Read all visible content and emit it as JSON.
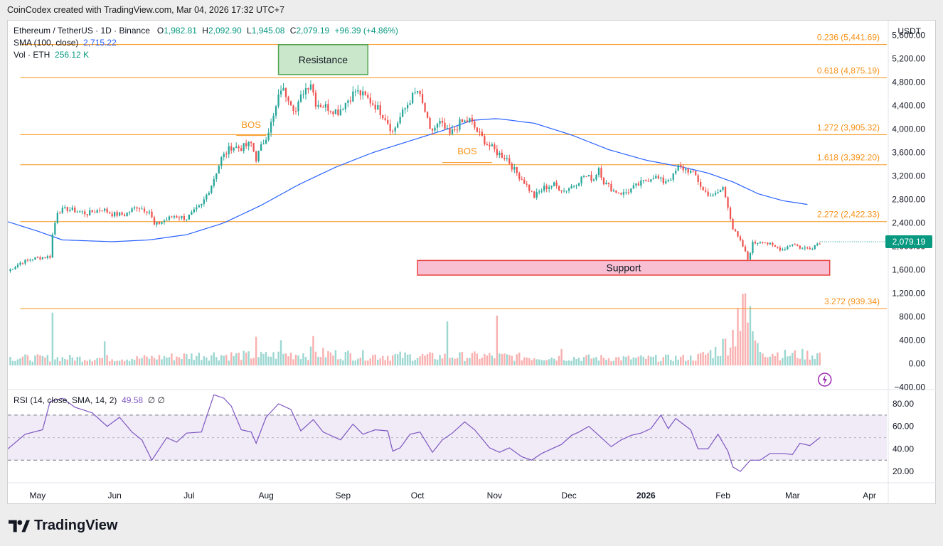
{
  "header": {
    "caption": "CoinCodex created with TradingView.com, Mar 04, 2026 17:32 UTC+7"
  },
  "legend": {
    "symbol": "Ethereum / TetherUS · 1D · Binance",
    "o_label": "O",
    "o_value": "1,982.81",
    "h_label": "H",
    "h_value": "2,092.90",
    "l_label": "L",
    "l_value": "1,945.08",
    "c_label": "C",
    "c_value": "2,079.19",
    "change": "+96.39 (+4.86%)",
    "sma_label": "SMA (100, close)",
    "sma_value": "2,715.22",
    "vol_label": "Vol · ETH",
    "vol_value": "256.12 K",
    "rsi_label": "RSI (14, close, SMA, 14, 2)",
    "rsi_value": "49.58",
    "rsi_extra": "∅  ∅"
  },
  "axis": {
    "currency": "USDT"
  },
  "footer": {
    "brand": "TradingView"
  },
  "colors": {
    "up": "#26a69a",
    "down": "#ef5350",
    "sma": "#2962ff",
    "fib": "#f7931a",
    "rsi": "#7e57c2",
    "rsi_band": "#ede7f6",
    "resistance_fill": "#c8e6c9",
    "resistance_stroke": "#43a047",
    "support_fill": "#f8bbd0",
    "support_stroke": "#e53935",
    "price_tag": "#089981"
  },
  "chart_data": {
    "type": "candlestick",
    "price_axis": {
      "ticks": [
        -400,
        0,
        400,
        800,
        1200,
        1600,
        2000,
        2400,
        2800,
        3200,
        3600,
        4000,
        4400,
        4800,
        5200,
        5600
      ],
      "tick_labels": [
        "−400.00",
        "0.00",
        "400.00",
        "800.00",
        "1,200.00",
        "1,600.00",
        "2,000.00",
        "2,400.00",
        "2,800.00",
        "3,200.00",
        "3,600.00",
        "4,000.00",
        "4,400.00",
        "4,800.00",
        "5,200.00",
        "5,600.00"
      ],
      "range": [
        -430,
        5850
      ]
    },
    "rsi_axis": {
      "ticks": [
        20,
        40,
        60,
        80
      ],
      "tick_labels": [
        "20.00",
        "40.00",
        "60.00",
        "80.00"
      ],
      "range": [
        10,
        92
      ],
      "bands": [
        30,
        70
      ],
      "mid": 50
    },
    "time_axis": {
      "labels": [
        "May",
        "Jun",
        "Jul",
        "Aug",
        "Sep",
        "Oct",
        "Nov",
        "Dec",
        "2026",
        "Feb",
        "Mar",
        "Apr"
      ],
      "bold": [
        false,
        false,
        false,
        false,
        false,
        false,
        false,
        false,
        true,
        false,
        false,
        false
      ],
      "day_index": [
        0,
        31,
        61,
        92,
        123,
        153,
        184,
        214,
        245,
        276,
        304,
        335
      ],
      "range_days": [
        -12,
        342
      ]
    },
    "fib_levels": [
      {
        "label": "0.236 (5,441.69)",
        "value": 5441.69
      },
      {
        "label": "0.618 (4,875.19)",
        "value": 4875.19
      },
      {
        "label": "1.272 (3,905.32)",
        "value": 3905.32
      },
      {
        "label": "1.618 (3,392.20)",
        "value": 3392.2
      },
      {
        "label": "2.272 (2,422.33)",
        "value": 2422.33
      },
      {
        "label": "3.272 (939.34)",
        "value": 939.34
      }
    ],
    "zones": [
      {
        "label": "Resistance",
        "kind": "resistance",
        "day_start": 97,
        "day_end": 133,
        "top": 5440,
        "bottom": 4930
      },
      {
        "label": "Support",
        "kind": "support",
        "day_start": 153,
        "day_end": 319,
        "top": 1760,
        "bottom": 1510
      }
    ],
    "bos_marks": [
      {
        "label": "BOS",
        "day_start": 80,
        "day_end": 92,
        "value": 3890,
        "label_value": 4020
      },
      {
        "label": "BOS",
        "day_start": 163,
        "day_end": 183,
        "value": 3430,
        "label_value": 3570
      }
    ],
    "last_price": {
      "value": 2079.19,
      "label": "2,079.19"
    },
    "price_path": [
      [
        -12,
        1580
      ],
      [
        -7,
        1720
      ],
      [
        -2,
        1790
      ],
      [
        5,
        1830
      ],
      [
        6,
        2200
      ],
      [
        8,
        2600
      ],
      [
        12,
        2640
      ],
      [
        20,
        2560
      ],
      [
        26,
        2640
      ],
      [
        30,
        2550
      ],
      [
        35,
        2540
      ],
      [
        40,
        2680
      ],
      [
        45,
        2600
      ],
      [
        47,
        2360
      ],
      [
        55,
        2520
      ],
      [
        60,
        2480
      ],
      [
        66,
        2700
      ],
      [
        70,
        3050
      ],
      [
        74,
        3500
      ],
      [
        78,
        3700
      ],
      [
        82,
        3680
      ],
      [
        86,
        3750
      ],
      [
        88,
        3500
      ],
      [
        92,
        3880
      ],
      [
        95,
        4200
      ],
      [
        98,
        4700
      ],
      [
        101,
        4550
      ],
      [
        104,
        4300
      ],
      [
        107,
        4650
      ],
      [
        110,
        4800
      ],
      [
        112,
        4450
      ],
      [
        115,
        4400
      ],
      [
        121,
        4300
      ],
      [
        125,
        4500
      ],
      [
        128,
        4650
      ],
      [
        132,
        4550
      ],
      [
        136,
        4400
      ],
      [
        140,
        4200
      ],
      [
        143,
        3950
      ],
      [
        146,
        4200
      ],
      [
        150,
        4500
      ],
      [
        153,
        4650
      ],
      [
        156,
        4300
      ],
      [
        158,
        3950
      ],
      [
        162,
        4100
      ],
      [
        166,
        3900
      ],
      [
        170,
        4100
      ],
      [
        174,
        4150
      ],
      [
        178,
        3900
      ],
      [
        181,
        3750
      ],
      [
        185,
        3600
      ],
      [
        189,
        3500
      ],
      [
        192,
        3300
      ],
      [
        196,
        3100
      ],
      [
        200,
        2850
      ],
      [
        204,
        3000
      ],
      [
        208,
        3050
      ],
      [
        212,
        2950
      ],
      [
        216,
        3050
      ],
      [
        220,
        3200
      ],
      [
        224,
        3150
      ],
      [
        226,
        3350
      ],
      [
        228,
        3100
      ],
      [
        232,
        2950
      ],
      [
        236,
        2900
      ],
      [
        240,
        3000
      ],
      [
        244,
        3100
      ],
      [
        248,
        3200
      ],
      [
        252,
        3100
      ],
      [
        256,
        3200
      ],
      [
        258,
        3350
      ],
      [
        262,
        3300
      ],
      [
        265,
        3200
      ],
      [
        268,
        2950
      ],
      [
        272,
        2850
      ],
      [
        276,
        3000
      ],
      [
        278,
        2700
      ],
      [
        280,
        2300
      ],
      [
        284,
        2000
      ],
      [
        286,
        1780
      ],
      [
        288,
        2050
      ],
      [
        292,
        2100
      ],
      [
        296,
        2000
      ],
      [
        300,
        1950
      ],
      [
        304,
        2050
      ],
      [
        308,
        1960
      ],
      [
        312,
        1990
      ],
      [
        315,
        2079
      ]
    ],
    "volume_path": [
      [
        -12,
        100
      ],
      [
        40,
        90
      ],
      [
        70,
        150
      ],
      [
        90,
        130
      ],
      [
        110,
        180
      ],
      [
        130,
        140
      ],
      [
        160,
        120
      ],
      [
        180,
        130
      ],
      [
        200,
        110
      ],
      [
        240,
        90
      ],
      [
        265,
        100
      ],
      [
        275,
        250
      ],
      [
        280,
        500
      ],
      [
        285,
        900
      ],
      [
        290,
        260
      ],
      [
        300,
        150
      ],
      [
        315,
        160
      ]
    ],
    "volume_spikes": [
      {
        "day": 6,
        "value": 870
      },
      {
        "day": 27,
        "value": 380
      },
      {
        "day": 88,
        "value": 460
      },
      {
        "day": 98,
        "value": 400
      },
      {
        "day": 111,
        "value": 470
      },
      {
        "day": 165,
        "value": 720
      },
      {
        "day": 185,
        "value": 820
      },
      {
        "day": 211,
        "value": 250
      },
      {
        "day": 282,
        "value": 950
      },
      {
        "day": 284,
        "value": 1190
      },
      {
        "day": 285,
        "value": 1200
      }
    ],
    "sma_path": [
      [
        -12,
        2420
      ],
      [
        0,
        2260
      ],
      [
        10,
        2110
      ],
      [
        30,
        2080
      ],
      [
        45,
        2110
      ],
      [
        60,
        2200
      ],
      [
        75,
        2400
      ],
      [
        90,
        2700
      ],
      [
        105,
        3050
      ],
      [
        120,
        3350
      ],
      [
        135,
        3600
      ],
      [
        150,
        3800
      ],
      [
        165,
        4000
      ],
      [
        175,
        4150
      ],
      [
        185,
        4180
      ],
      [
        200,
        4100
      ],
      [
        215,
        3900
      ],
      [
        230,
        3650
      ],
      [
        245,
        3470
      ],
      [
        260,
        3350
      ],
      [
        270,
        3250
      ],
      [
        280,
        3100
      ],
      [
        290,
        2900
      ],
      [
        300,
        2780
      ],
      [
        310,
        2715
      ]
    ],
    "rsi_path": [
      [
        -12,
        40
      ],
      [
        -5,
        53
      ],
      [
        2,
        57
      ],
      [
        5,
        82
      ],
      [
        10,
        85
      ],
      [
        15,
        77
      ],
      [
        22,
        72
      ],
      [
        28,
        60
      ],
      [
        33,
        68
      ],
      [
        38,
        55
      ],
      [
        42,
        48
      ],
      [
        46,
        30
      ],
      [
        52,
        50
      ],
      [
        56,
        46
      ],
      [
        60,
        54
      ],
      [
        66,
        55
      ],
      [
        71,
        88
      ],
      [
        75,
        85
      ],
      [
        78,
        78
      ],
      [
        82,
        57
      ],
      [
        86,
        55
      ],
      [
        88,
        45
      ],
      [
        92,
        68
      ],
      [
        97,
        80
      ],
      [
        102,
        75
      ],
      [
        106,
        56
      ],
      [
        111,
        66
      ],
      [
        115,
        55
      ],
      [
        122,
        48
      ],
      [
        127,
        62
      ],
      [
        131,
        53
      ],
      [
        136,
        57
      ],
      [
        141,
        56
      ],
      [
        143,
        38
      ],
      [
        146,
        41
      ],
      [
        150,
        53
      ],
      [
        154,
        55
      ],
      [
        159,
        37
      ],
      [
        163,
        48
      ],
      [
        167,
        54
      ],
      [
        172,
        64
      ],
      [
        176,
        57
      ],
      [
        182,
        41
      ],
      [
        186,
        37
      ],
      [
        190,
        41
      ],
      [
        195,
        33
      ],
      [
        199,
        30
      ],
      [
        203,
        36
      ],
      [
        207,
        40
      ],
      [
        211,
        44
      ],
      [
        215,
        52
      ],
      [
        218,
        55
      ],
      [
        222,
        60
      ],
      [
        227,
        50
      ],
      [
        231,
        42
      ],
      [
        235,
        48
      ],
      [
        239,
        52
      ],
      [
        243,
        54
      ],
      [
        247,
        58
      ],
      [
        251,
        70
      ],
      [
        254,
        58
      ],
      [
        257,
        67
      ],
      [
        260,
        62
      ],
      [
        263,
        57
      ],
      [
        266,
        40
      ],
      [
        270,
        40
      ],
      [
        274,
        53
      ],
      [
        278,
        38
      ],
      [
        280,
        24
      ],
      [
        283,
        20
      ],
      [
        287,
        30
      ],
      [
        291,
        30
      ],
      [
        295,
        36
      ],
      [
        300,
        36
      ],
      [
        304,
        35
      ],
      [
        307,
        45
      ],
      [
        311,
        43
      ],
      [
        315,
        50
      ]
    ]
  }
}
